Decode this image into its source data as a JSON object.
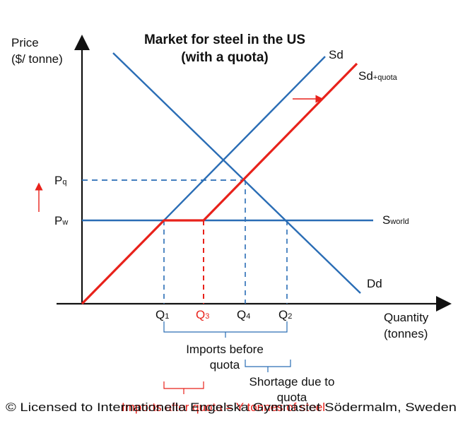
{
  "title": {
    "line1": "Market for steel in the US",
    "line2": "(with a quota)"
  },
  "axes": {
    "y_label_line1": "Price",
    "y_label_line2": "($/ tonne)",
    "x_label_line1": "Quantity",
    "x_label_line2": "(tonnes)"
  },
  "curves": {
    "sd": "Sd",
    "sd_quota_main": "Sd",
    "sd_quota_sub": "+quota",
    "dd": "Dd",
    "sworld_main": "S",
    "sworld_sub": "world"
  },
  "prices": {
    "pq_main": "P",
    "pq_sub": "q",
    "pw_main": "P",
    "pw_sub": "w"
  },
  "quantities": {
    "q1_main": "Q",
    "q1_sub": "1",
    "q3_main": "Q",
    "q3_sub": "3",
    "q4_main": "Q",
    "q4_sub": "4",
    "q2_main": "Q",
    "q2_sub": "2"
  },
  "annotations": {
    "imports_before_line1": "Imports before",
    "imports_before_line2": "quota",
    "shortage_line1": "Shortage due to",
    "shortage_line2": "quota",
    "imports_after": "Imports after quota = Y tonnes of steel"
  },
  "footer": "© Licensed to Internationella Engelska Gymnasiet Södermalm, Sweden",
  "colors": {
    "blue": "#2a6db5",
    "red": "#e8221b",
    "black": "#111111"
  }
}
